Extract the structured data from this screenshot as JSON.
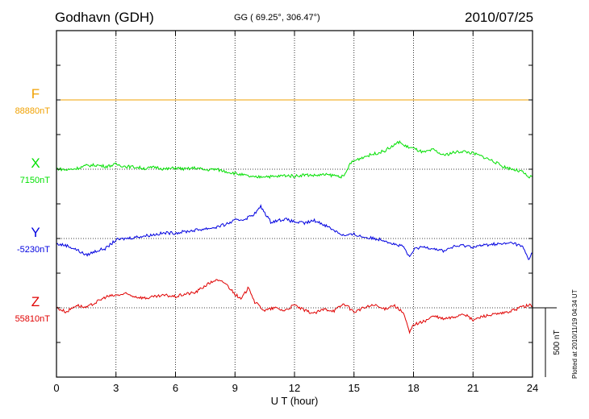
{
  "header": {
    "station": "Godhavn (GDH)",
    "coords": "GG ( 69.25°, 306.47°)",
    "date": "2010/07/25"
  },
  "plotted_note": "Plotted at 2010/11/19 04:34 UT",
  "chart_data": {
    "type": "line",
    "xlabel": "U T (hour)",
    "x_ticks": [
      "0",
      "3",
      "6",
      "9",
      "12",
      "15",
      "18",
      "21",
      "24"
    ],
    "xlim": [
      0,
      24
    ],
    "grid": true,
    "scale_bar_label": "500 nT",
    "scale_bar_nT": 500,
    "series": [
      {
        "name": "F",
        "baseline_label": "88880nT",
        "color": "#f0a000",
        "row": 0,
        "x": [
          0,
          24
        ],
        "y": [
          0,
          0
        ]
      },
      {
        "name": "X",
        "baseline_label": "7150nT",
        "color": "#00e000",
        "row": 1,
        "x": [
          0,
          0.5,
          1,
          1.5,
          2,
          2.5,
          3,
          3.5,
          4,
          4.5,
          5,
          5.5,
          6,
          6.5,
          7,
          7.5,
          8,
          8.5,
          9,
          9.5,
          10,
          10.5,
          11,
          11.5,
          12,
          12.5,
          13,
          13.5,
          14,
          14.5,
          14.8,
          15,
          15.5,
          16,
          16.5,
          17,
          17.3,
          17.5,
          18,
          18.5,
          19,
          19.5,
          20,
          20.5,
          21,
          21.5,
          22,
          22.5,
          23,
          23.5,
          23.8,
          24
        ],
        "y": [
          5,
          -5,
          5,
          25,
          30,
          20,
          35,
          20,
          15,
          5,
          15,
          0,
          10,
          0,
          10,
          -5,
          0,
          -15,
          -30,
          -45,
          -60,
          -50,
          -55,
          -45,
          -50,
          -40,
          -45,
          -40,
          -45,
          -55,
          40,
          60,
          90,
          110,
          130,
          170,
          200,
          170,
          150,
          120,
          140,
          100,
          120,
          130,
          115,
          90,
          60,
          20,
          0,
          -20,
          -60,
          -50
        ]
      },
      {
        "name": "Y",
        "baseline_label": "-5230nT",
        "color": "#0000e0",
        "row": 2,
        "x": [
          0,
          0.5,
          1,
          1.5,
          2,
          2.5,
          3,
          3.5,
          4,
          4.5,
          5,
          5.5,
          6,
          6.5,
          7,
          7.5,
          8,
          8.5,
          9,
          9.5,
          10,
          10.3,
          10.8,
          11.5,
          12,
          12.5,
          13,
          13.5,
          14,
          14.5,
          15,
          15.5,
          16,
          16.5,
          17,
          17.5,
          17.8,
          18,
          18.5,
          19,
          19.5,
          20,
          20.5,
          21,
          21.5,
          22,
          22.5,
          23,
          23.5,
          23.8,
          24
        ],
        "y": [
          -40,
          -50,
          -80,
          -120,
          -90,
          -70,
          -10,
          0,
          10,
          20,
          30,
          40,
          40,
          50,
          60,
          70,
          80,
          100,
          130,
          140,
          180,
          230,
          120,
          140,
          120,
          110,
          130,
          100,
          60,
          20,
          30,
          10,
          0,
          -10,
          -40,
          -60,
          -140,
          -80,
          -60,
          -70,
          -90,
          -60,
          -50,
          -60,
          -50,
          -40,
          -40,
          -30,
          -60,
          -150,
          -100
        ]
      },
      {
        "name": "Z",
        "baseline_label": "55810nT",
        "color": "#e00000",
        "row": 3,
        "x": [
          0,
          0.5,
          1,
          1.5,
          2,
          2.5,
          3,
          3.5,
          4,
          4.5,
          5,
          5.5,
          6,
          6.5,
          7,
          7.5,
          8,
          8.5,
          9,
          9.3,
          9.7,
          10,
          10.5,
          11,
          11.5,
          12,
          12.5,
          13,
          13.5,
          14,
          14.5,
          15,
          15.5,
          16,
          16.5,
          17,
          17.5,
          17.8,
          18,
          18.5,
          19,
          19.5,
          20,
          20.5,
          21,
          21.5,
          22,
          22.5,
          23,
          23.5,
          24
        ],
        "y": [
          0,
          -30,
          20,
          0,
          40,
          80,
          90,
          100,
          80,
          70,
          80,
          90,
          80,
          100,
          110,
          160,
          200,
          180,
          100,
          60,
          150,
          40,
          -20,
          0,
          -20,
          20,
          -20,
          -40,
          -10,
          -20,
          30,
          -30,
          0,
          20,
          -10,
          20,
          -40,
          -180,
          -120,
          -100,
          -60,
          -80,
          -70,
          -40,
          -90,
          -60,
          -50,
          -40,
          -20,
          10,
          20
        ]
      }
    ]
  }
}
